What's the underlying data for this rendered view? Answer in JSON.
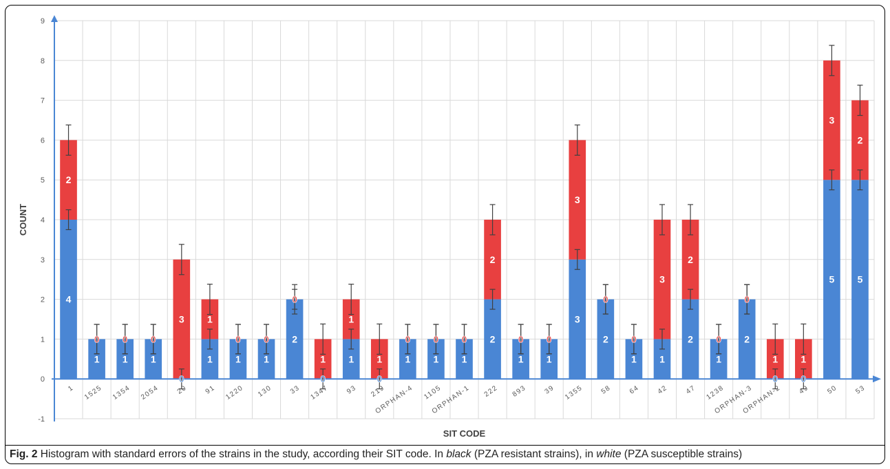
{
  "chart_data": {
    "type": "bar",
    "stacked": true,
    "xlabel": "SIT CODE",
    "ylabel": "COUNT",
    "ylim": [
      -1,
      9
    ],
    "yticks": [
      "-1",
      "0",
      "1",
      "2",
      "3",
      "4",
      "5",
      "6",
      "7",
      "8",
      "9"
    ],
    "grid": true,
    "categories": [
      "1",
      "1525",
      "1354",
      "2054",
      "20",
      "91",
      "1220",
      "130",
      "33",
      "1347",
      "93",
      "219",
      "ORPHAN-4",
      "1105",
      "ORPHAN-1",
      "222",
      "893",
      "39",
      "1355",
      "58",
      "64",
      "42",
      "47",
      "1238",
      "ORPHAN-3",
      "ORPHAN-2",
      "49",
      "50",
      "53"
    ],
    "series": [
      {
        "color": "#4a86d4",
        "label_color": "#ffffff",
        "values": [
          4,
          1,
          1,
          1,
          0,
          1,
          1,
          1,
          2,
          0,
          1,
          0,
          1,
          1,
          1,
          2,
          1,
          1,
          3,
          2,
          1,
          1,
          2,
          1,
          2,
          0,
          0,
          5,
          5
        ],
        "error": [
          0.25,
          0.37,
          0.37,
          0.37,
          0.25,
          0.25,
          0.37,
          0.37,
          0.25,
          0.25,
          0.25,
          0.25,
          0.37,
          0.37,
          0.37,
          0.25,
          0.37,
          0.37,
          0.25,
          0.37,
          0.37,
          0.25,
          0.25,
          0.37,
          0.37,
          0.25,
          0.25,
          0.25,
          0.25
        ]
      },
      {
        "color": "#e84040",
        "label_color": "#ffffff",
        "values": [
          2,
          0,
          0,
          0,
          3,
          1,
          0,
          0,
          0,
          1,
          1,
          1,
          0,
          0,
          0,
          2,
          0,
          0,
          3,
          0,
          0,
          3,
          2,
          0,
          0,
          1,
          1,
          3,
          2
        ],
        "error": [
          0.38,
          0.37,
          0.37,
          0.37,
          0.38,
          0.38,
          0.37,
          0.37,
          0.37,
          0.38,
          0.38,
          0.38,
          0.37,
          0.37,
          0.37,
          0.38,
          0.37,
          0.37,
          0.38,
          0.37,
          0.37,
          0.38,
          0.38,
          0.37,
          0.37,
          0.38,
          0.38,
          0.38,
          0.38
        ]
      }
    ]
  },
  "caption": {
    "fig_label": "Fig. 2",
    "text_1": " Histogram with standard errors of the strains in the study, according their SIT code. In ",
    "black_word": "black",
    "text_2": " (PZA resistant strains), in ",
    "white_word": "white",
    "text_3": " (PZA susceptible strains)"
  }
}
